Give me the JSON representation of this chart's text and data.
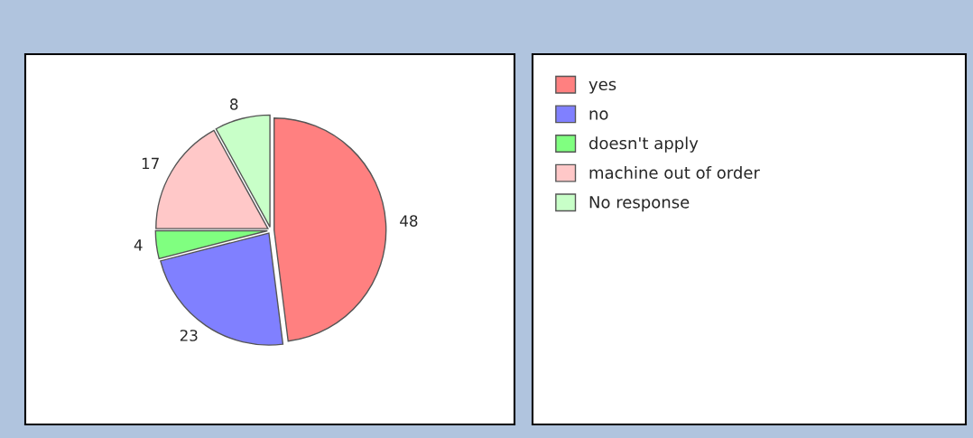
{
  "chart_data": {
    "type": "pie",
    "categories": [
      "yes",
      "no",
      "doesn't apply",
      "machine out of order",
      "No response"
    ],
    "values": [
      48,
      23,
      4,
      17,
      8
    ],
    "colors": [
      "#ff8080",
      "#8080ff",
      "#80ff80",
      "#ffc8c8",
      "#c8ffc8"
    ],
    "data_labels": true,
    "legend": "right"
  }
}
